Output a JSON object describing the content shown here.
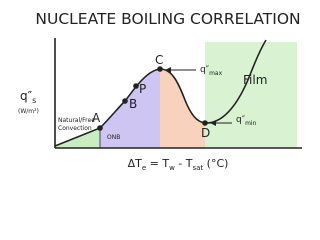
{
  "title": "NUCLEATE BOILING CORRELATION",
  "y_label": {
    "symbol": "q″",
    "sub": "s",
    "unit": "(W/m²)"
  },
  "x_label": {
    "parts": [
      "ΔT",
      "e",
      " = T",
      "w",
      " - T",
      "sat",
      " (°C)"
    ]
  },
  "regions": {
    "natural": [
      "Natural/Free",
      "Convection"
    ],
    "onb": "ONB",
    "film": "Film"
  },
  "points": {
    "a": "A",
    "b": "B",
    "p": "P",
    "c": "C",
    "d": "D"
  },
  "q_max": {
    "symbol": "q″",
    "sub": "max"
  },
  "q_min": {
    "symbol": "q″",
    "sub": "min"
  }
}
